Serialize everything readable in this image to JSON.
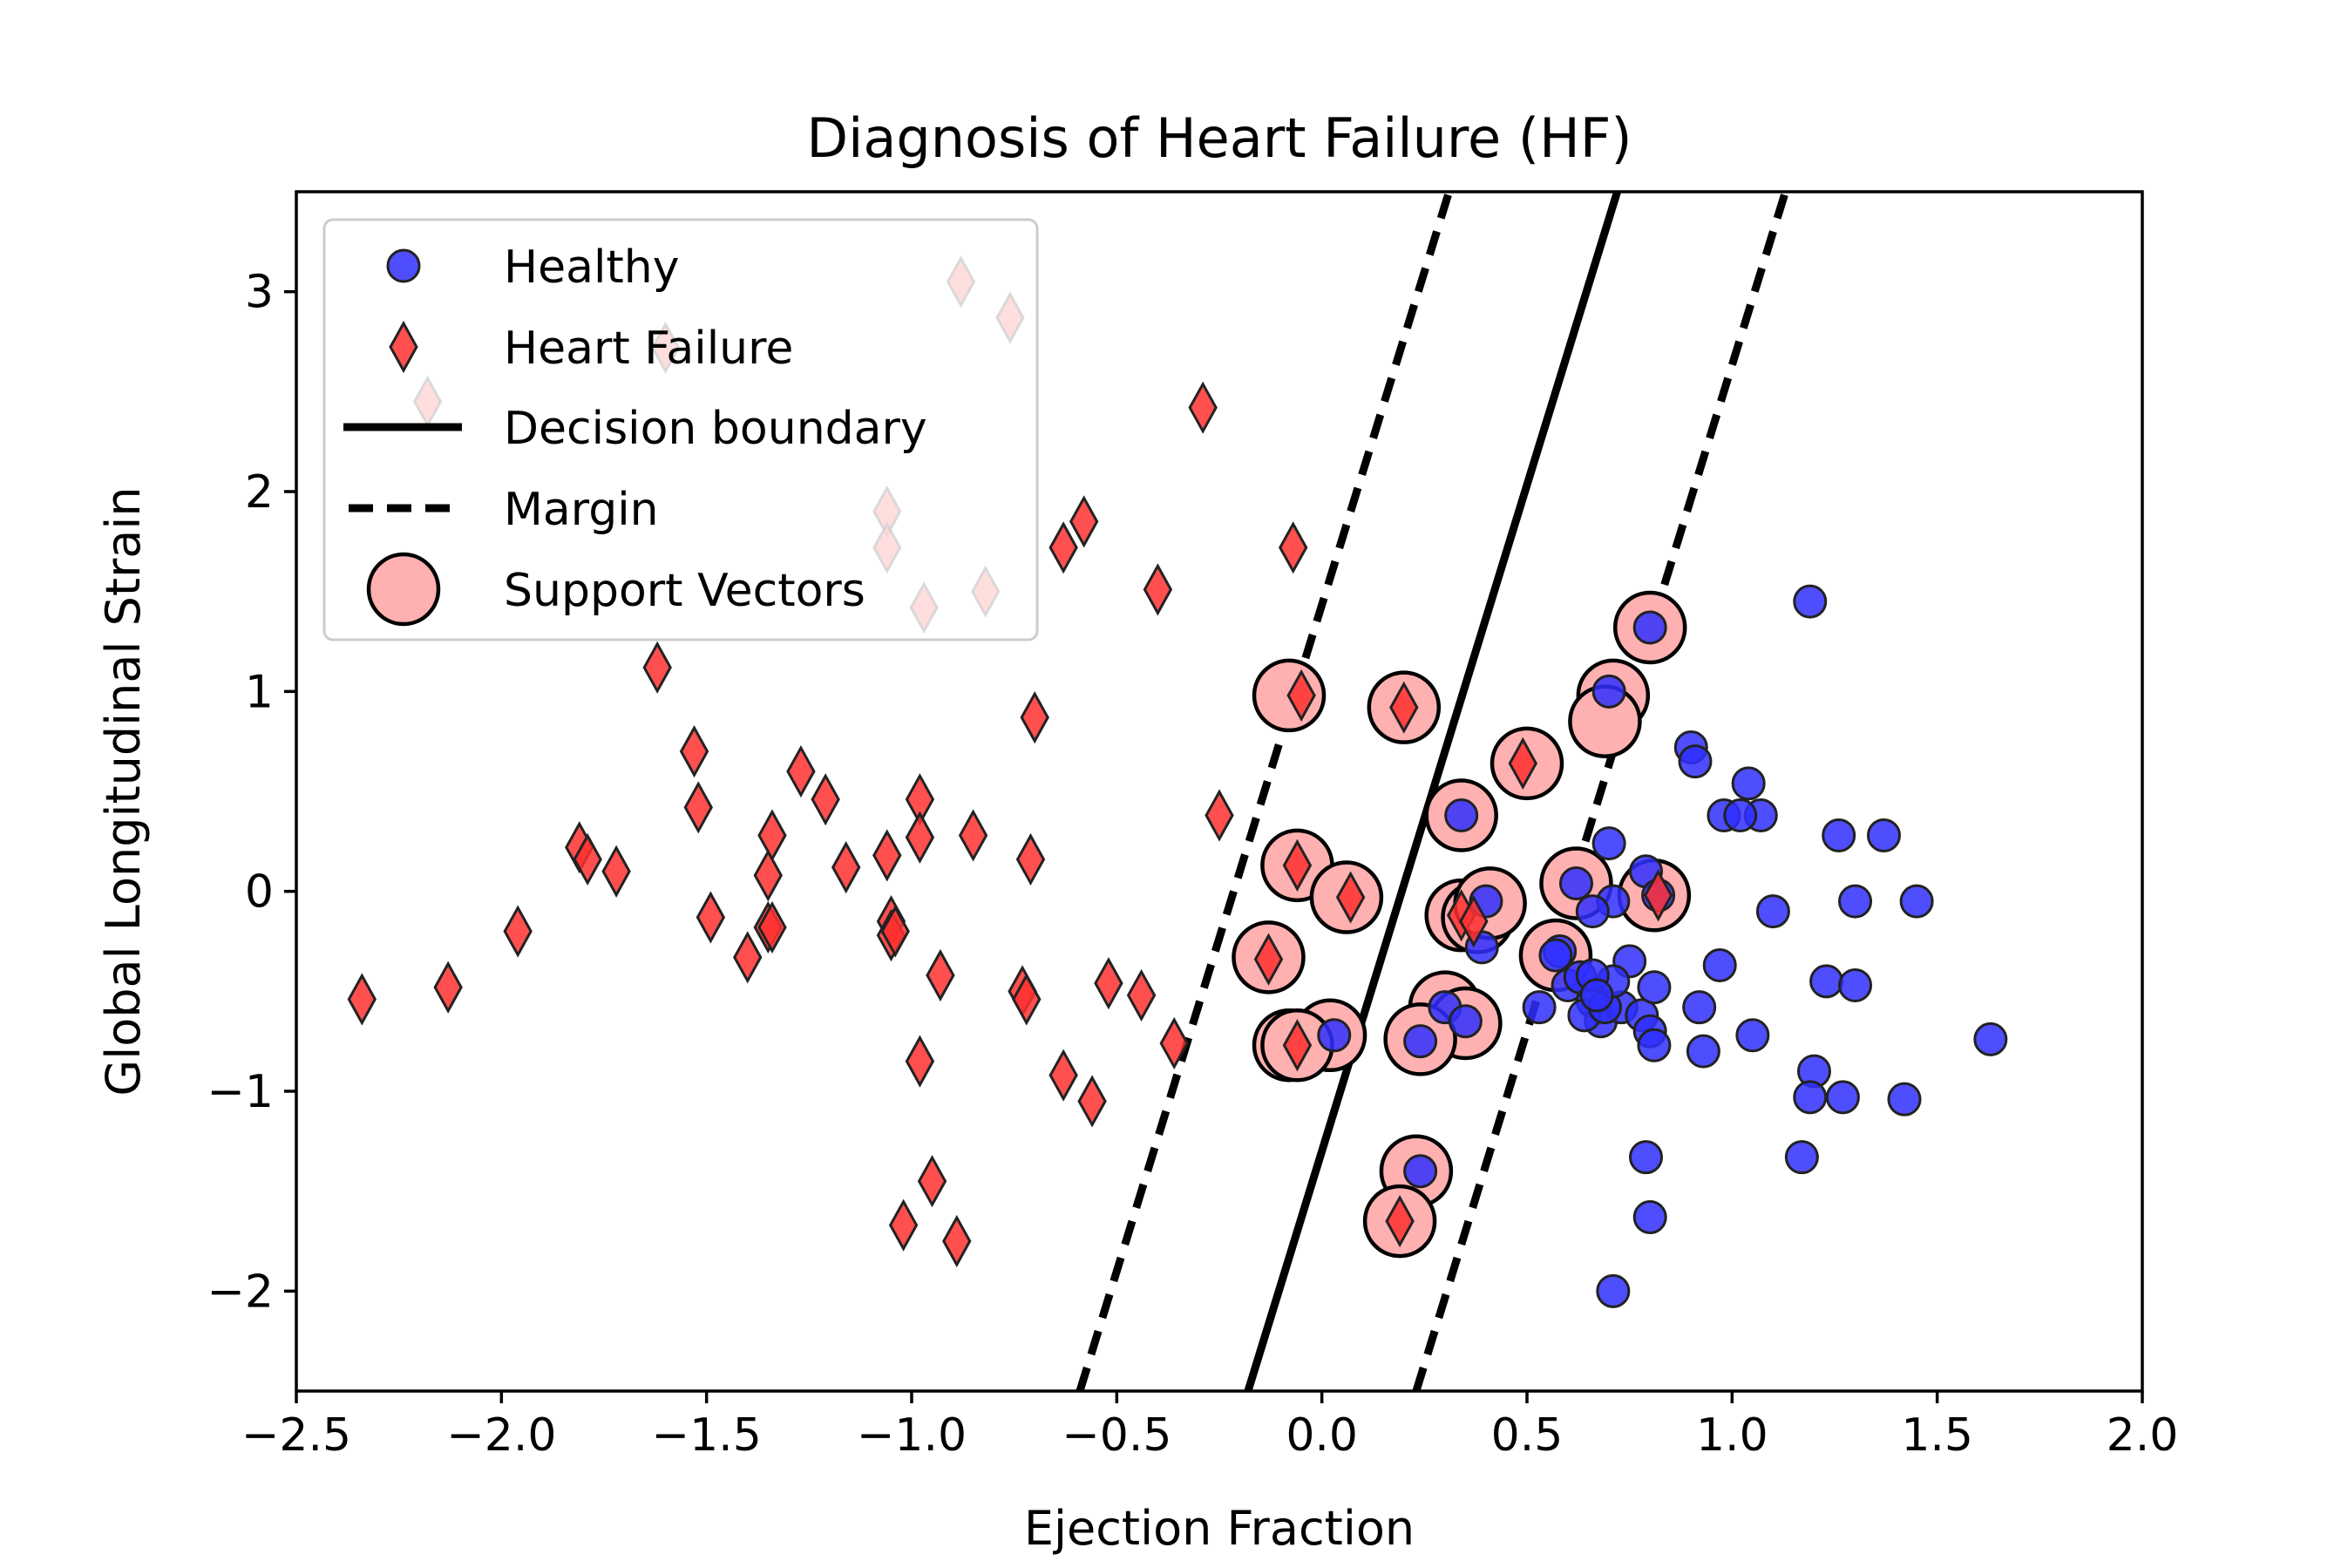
{
  "chart_data": {
    "type": "scatter",
    "title": "Diagnosis of Heart Failure (HF)",
    "xlabel": "Ejection Fraction",
    "ylabel": "Global Longitudinal Strain",
    "xlim": [
      -2.5,
      2.0
    ],
    "ylim": [
      -2.5,
      3.5
    ],
    "xticks": [
      -2.5,
      -2.0,
      -1.5,
      -1.0,
      -0.5,
      0.0,
      0.5,
      1.0,
      1.5,
      2.0
    ],
    "xtick_labels": [
      "−2.5",
      "−2.0",
      "−1.5",
      "−1.0",
      "−0.5",
      "0.0",
      "0.5",
      "1.0",
      "1.5",
      "2.0"
    ],
    "yticks": [
      -2,
      -1,
      0,
      1,
      2,
      3
    ],
    "ytick_labels": [
      "−2",
      "−1",
      "0",
      "1",
      "2",
      "3"
    ],
    "grid": false,
    "legend_position": "top-left",
    "legend": [
      {
        "label": "Healthy",
        "kind": "circle"
      },
      {
        "label": "Heart Failure",
        "kind": "diamond"
      },
      {
        "label": "Decision boundary",
        "kind": "solid-line"
      },
      {
        "label": "Margin",
        "kind": "dashed-line"
      },
      {
        "label": "Support Vectors",
        "kind": "support-circle"
      }
    ],
    "colors": {
      "healthy": "#2f2fff",
      "heart_failure": "#ff3030",
      "support_vector": "#ffb0b0",
      "line": "#000000"
    },
    "lines": {
      "decision_boundary": [
        [
          -0.18,
          -2.5
        ],
        [
          0.72,
          3.5
        ]
      ],
      "margin_left": [
        [
          -0.59,
          -2.5
        ],
        [
          0.31,
          3.5
        ]
      ],
      "margin_right": [
        [
          0.23,
          -2.5
        ],
        [
          1.13,
          3.5
        ]
      ]
    },
    "series": [
      {
        "name": "Healthy",
        "x": [
          1.19,
          0.8,
          0.7,
          0.9,
          0.91,
          0.98,
          1.04,
          1.07,
          1.02,
          0.7,
          0.34,
          1.26,
          1.37,
          0.62,
          0.79,
          0.82,
          0.71,
          0.66,
          0.58,
          0.57,
          0.6,
          0.63,
          0.66,
          0.68,
          0.73,
          0.78,
          0.81,
          0.75,
          0.64,
          0.69,
          0.71,
          0.66,
          0.67,
          0.53,
          0.3,
          0.35,
          0.24,
          0.4,
          0.03,
          0.39,
          1.1,
          1.3,
          1.45,
          0.97,
          0.92,
          1.23,
          1.3,
          1.05,
          0.8,
          0.81,
          0.93,
          1.2,
          1.19,
          1.27,
          1.42,
          1.63,
          1.17,
          0.79,
          0.8,
          0.71,
          0.24
        ],
        "y": [
          1.45,
          1.32,
          1.0,
          0.72,
          0.65,
          0.38,
          0.54,
          0.38,
          0.38,
          0.24,
          0.38,
          0.28,
          0.28,
          0.04,
          0.1,
          -0.02,
          -0.05,
          -0.1,
          -0.3,
          -0.32,
          -0.47,
          -0.43,
          -0.55,
          -0.65,
          -0.58,
          -0.62,
          -0.48,
          -0.35,
          -0.62,
          -0.58,
          -0.45,
          -0.42,
          -0.52,
          -0.58,
          -0.58,
          -0.65,
          -0.75,
          -0.05,
          -0.72,
          -0.28,
          -0.1,
          -0.05,
          -0.05,
          -0.37,
          -0.58,
          -0.45,
          -0.47,
          -0.72,
          -0.7,
          -0.77,
          -0.8,
          -0.9,
          -1.03,
          -1.03,
          -1.04,
          -0.74,
          -1.33,
          -1.33,
          -1.63,
          -2.0,
          -1.4
        ]
      },
      {
        "name": "Heart Failure",
        "x": [
          -2.34,
          -2.13,
          -1.96,
          -1.81,
          -1.79,
          -1.72,
          -1.62,
          -1.53,
          -1.52,
          -1.49,
          -1.4,
          -1.35,
          -1.35,
          -1.34,
          -1.34,
          -1.27,
          -1.21,
          -1.16,
          -1.05,
          -1.05,
          -1.04,
          -1.02,
          -0.98,
          -0.98,
          -0.98,
          -0.95,
          -0.93,
          -0.89,
          -0.85,
          -0.73,
          -0.72,
          -0.71,
          -0.7,
          -0.63,
          -0.58,
          -0.52,
          -0.44,
          -0.4,
          -0.36,
          -0.29,
          -0.25,
          -0.06,
          -0.06,
          -0.05,
          -0.07,
          -0.13,
          0.07,
          0.2,
          0.19,
          0.34,
          0.37,
          0.49,
          0.82,
          -1.06,
          -0.63,
          -0.56
        ],
        "y": [
          -0.54,
          -0.48,
          -0.2,
          0.22,
          0.16,
          0.1,
          1.12,
          0.7,
          0.42,
          -0.13,
          -0.33,
          -0.18,
          0.08,
          0.28,
          -0.18,
          0.6,
          0.46,
          0.12,
          -0.15,
          -0.22,
          -0.2,
          -1.67,
          0.46,
          0.27,
          -0.85,
          -1.45,
          -0.42,
          -1.75,
          0.28,
          -0.5,
          -0.54,
          0.16,
          0.87,
          1.72,
          1.85,
          -0.46,
          -0.52,
          1.51,
          -0.76,
          2.42,
          0.38,
          0.13,
          -0.77,
          0.98,
          1.72,
          -0.34,
          -0.03,
          0.92,
          -1.65,
          -0.12,
          -0.15,
          0.64,
          -0.02,
          0.18,
          -0.92,
          -1.05
        ]
      },
      {
        "name": "Heart Failure (faded)",
        "x": [
          -0.88,
          -0.76,
          -1.6,
          -2.18,
          -1.06,
          -1.06,
          -0.82,
          -0.97
        ],
        "y": [
          3.05,
          2.87,
          2.72,
          2.45,
          1.9,
          1.72,
          1.5,
          1.42
        ]
      },
      {
        "name": "Support Vectors",
        "x": [
          0.8,
          0.71,
          0.69,
          -0.08,
          0.2,
          0.5,
          0.34,
          -0.06,
          0.06,
          0.62,
          0.81,
          0.34,
          0.38,
          0.41,
          0.57,
          -0.13,
          0.3,
          0.35,
          0.24,
          0.02,
          -0.08,
          -0.06,
          0.23,
          0.19
        ],
        "y": [
          1.32,
          0.98,
          0.85,
          0.98,
          0.92,
          0.64,
          0.38,
          0.13,
          -0.03,
          0.04,
          -0.02,
          -0.12,
          -0.13,
          -0.06,
          -0.32,
          -0.33,
          -0.58,
          -0.66,
          -0.74,
          -0.72,
          -0.77,
          -0.77,
          -1.4,
          -1.65
        ]
      }
    ]
  }
}
